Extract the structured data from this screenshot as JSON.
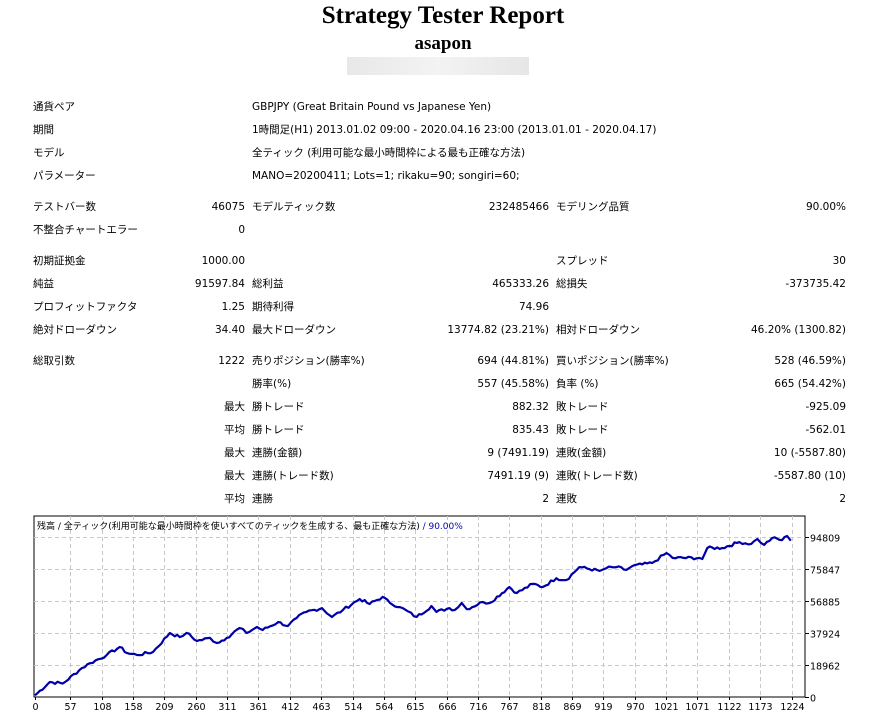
{
  "header": {
    "title": "Strategy Tester Report",
    "subtitle": "asapon"
  },
  "info": [
    {
      "label": "通貨ペア",
      "value": "GBPJPY (Great Britain Pound vs Japanese Yen)"
    },
    {
      "label": "期間",
      "value": "1時間足(H1) 2013.01.02 09:00 - 2020.04.16 23:00 (2013.01.01 - 2020.04.17)"
    },
    {
      "label": "モデル",
      "value": "全ティック (利用可能な最小時間枠による最も正確な方法)"
    },
    {
      "label": "パラメーター",
      "value": "MANO=20200411; Lots=1; rikaku=90; songiri=60;"
    }
  ],
  "stats": [
    [
      "テストバー数",
      "46075",
      "モデルティック数",
      "232485466",
      "モデリング品質",
      "90.00%"
    ],
    [
      "不整合チャートエラー",
      "0",
      "",
      "",
      "",
      ""
    ],
    [
      "初期証拠金",
      "1000.00",
      "",
      "",
      "スプレッド",
      "30"
    ],
    [
      "純益",
      "91597.84",
      "総利益",
      "465333.26",
      "総損失",
      "-373735.42"
    ],
    [
      "プロフィットファクタ",
      "1.25",
      "期待利得",
      "74.96",
      "",
      ""
    ],
    [
      "絶対ドローダウン",
      "34.40",
      "最大ドローダウン",
      "13774.82 (23.21%)",
      "相対ドローダウン",
      "46.20% (1300.82)"
    ],
    [
      "総取引数",
      "1222",
      "売りポジション(勝率%)",
      "694 (44.81%)",
      "買いポジション(勝率%)",
      "528 (46.59%)"
    ],
    [
      "",
      "",
      "勝率(%)",
      "557 (45.58%)",
      "負率 (%)",
      "665 (54.42%)"
    ],
    [
      "",
      "最大",
      "勝トレード",
      "882.32",
      "敗トレード",
      "-925.09"
    ],
    [
      "",
      "平均",
      "勝トレード",
      "835.43",
      "敗トレード",
      "-562.01"
    ],
    [
      "",
      "最大",
      "連勝(金額)",
      "9 (7491.19)",
      "連敗(金額)",
      "10 (-5587.80)"
    ],
    [
      "",
      "最大",
      "連勝(トレード数)",
      "7491.19 (9)",
      "連敗(トレード数)",
      "-5587.80 (10)"
    ],
    [
      "",
      "平均",
      "連勝",
      "2",
      "連敗",
      "2"
    ]
  ],
  "chart_data": {
    "type": "line",
    "title": "残高 / 全ティック(利用可能な最小時間枠を使いすべてのティックを生成する、最も正確な方法)",
    "quality": "90.00%",
    "xlabel": "",
    "ylabel": "",
    "xlim": [
      0,
      1245
    ],
    "ylim": [
      0,
      94809
    ],
    "x_ticks": [
      "0",
      "57",
      "108",
      "158",
      "209",
      "260",
      "311",
      "361",
      "412",
      "463",
      "514",
      "564",
      "615",
      "666",
      "716",
      "767",
      "818",
      "869",
      "919",
      "970",
      "1021",
      "1071",
      "1122",
      "1173",
      "1224"
    ],
    "y_ticks": [
      "94809",
      "75847",
      "56885",
      "37924",
      "18962",
      "0"
    ],
    "line_color": "#0000a8",
    "series": [
      {
        "name": "残高",
        "points": [
          [
            0,
            1000
          ],
          [
            24,
            8900
          ],
          [
            45,
            8000
          ],
          [
            76,
            17200
          ],
          [
            89,
            20000
          ],
          [
            116,
            24900
          ],
          [
            137,
            29600
          ],
          [
            149,
            26000
          ],
          [
            165,
            24900
          ],
          [
            191,
            26700
          ],
          [
            218,
            37900
          ],
          [
            234,
            35500
          ],
          [
            245,
            38000
          ],
          [
            262,
            33200
          ],
          [
            283,
            35000
          ],
          [
            294,
            32000
          ],
          [
            310,
            35000
          ],
          [
            331,
            40900
          ],
          [
            342,
            37900
          ],
          [
            359,
            41500
          ],
          [
            368,
            39700
          ],
          [
            393,
            44400
          ],
          [
            409,
            42100
          ],
          [
            423,
            46800
          ],
          [
            439,
            50400
          ],
          [
            464,
            52700
          ],
          [
            480,
            47400
          ],
          [
            498,
            51600
          ],
          [
            525,
            58100
          ],
          [
            541,
            55100
          ],
          [
            562,
            59300
          ],
          [
            574,
            55700
          ],
          [
            590,
            53300
          ],
          [
            617,
            47400
          ],
          [
            641,
            53900
          ],
          [
            649,
            50400
          ],
          [
            670,
            52700
          ],
          [
            679,
            51600
          ],
          [
            690,
            55700
          ],
          [
            698,
            52100
          ],
          [
            724,
            56300
          ],
          [
            735,
            55700
          ],
          [
            767,
            65200
          ],
          [
            779,
            61600
          ],
          [
            805,
            67000
          ],
          [
            821,
            65200
          ],
          [
            843,
            70400
          ],
          [
            859,
            69300
          ],
          [
            880,
            77000
          ],
          [
            913,
            74700
          ],
          [
            924,
            76400
          ],
          [
            940,
            77000
          ],
          [
            956,
            75300
          ],
          [
            966,
            77600
          ],
          [
            998,
            79400
          ],
          [
            1021,
            85300
          ],
          [
            1031,
            82400
          ],
          [
            1074,
            82400
          ],
          [
            1079,
            81800
          ],
          [
            1087,
            88300
          ],
          [
            1111,
            88300
          ],
          [
            1139,
            91800
          ],
          [
            1158,
            90700
          ],
          [
            1168,
            93600
          ],
          [
            1179,
            90100
          ],
          [
            1192,
            94200
          ],
          [
            1208,
            93000
          ],
          [
            1216,
            95400
          ],
          [
            1222,
            92598
          ]
        ]
      }
    ]
  }
}
